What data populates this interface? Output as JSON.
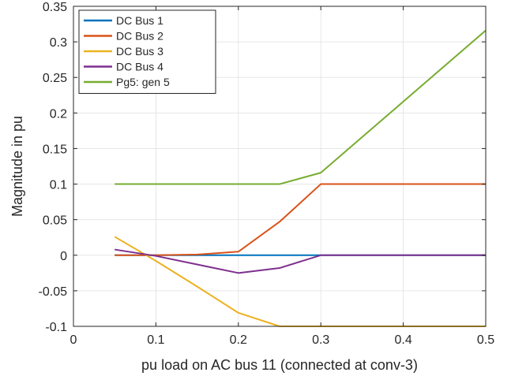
{
  "chart_data": {
    "type": "line",
    "title": "",
    "xlabel": "pu load on AC bus 11 (connected at conv-3)",
    "ylabel": "Magnitude in pu",
    "xlim": [
      0,
      0.5
    ],
    "ylim": [
      -0.1,
      0.35
    ],
    "xticks": [
      0,
      0.1,
      0.2,
      0.3,
      0.4,
      0.5
    ],
    "xtick_labels": [
      "0",
      "0.1",
      "0.2",
      "0.3",
      "0.4",
      "0.5"
    ],
    "yticks": [
      -0.1,
      -0.05,
      0,
      0.05,
      0.1,
      0.15,
      0.2,
      0.25,
      0.3,
      0.35
    ],
    "ytick_labels": [
      "-0.1",
      "-0.05",
      "0",
      "0.05",
      "0.1",
      "0.15",
      "0.2",
      "0.25",
      "0.3",
      "0.35"
    ],
    "grid": true,
    "legend_position": "top-left",
    "x": [
      0.05,
      0.1,
      0.15,
      0.2,
      0.25,
      0.3,
      0.35,
      0.4,
      0.45,
      0.5
    ],
    "series": [
      {
        "name": "DC Bus 1",
        "color": "#0072BD",
        "values": [
          0,
          0,
          0,
          0,
          0,
          0,
          0,
          0,
          0,
          0
        ]
      },
      {
        "name": "DC Bus 2",
        "color": "#D95319",
        "values": [
          0,
          0,
          0.001,
          0.005,
          0.047,
          0.1,
          0.1,
          0.1,
          0.1,
          0.1
        ]
      },
      {
        "name": "DC Bus 3",
        "color": "#EDB120",
        "values": [
          0.026,
          -0.008,
          -0.044,
          -0.081,
          -0.1,
          -0.1,
          -0.1,
          -0.1,
          -0.1,
          -0.1
        ]
      },
      {
        "name": "DC Bus 4",
        "color": "#7E2F8E",
        "values": [
          0.008,
          -0.001,
          -0.013,
          -0.025,
          -0.018,
          0,
          0,
          0,
          0,
          0
        ]
      },
      {
        "name": "Pg5: gen 5",
        "color": "#77AC30",
        "values": [
          0.1,
          0.1,
          0.1,
          0.1,
          0.1,
          0.116,
          0.166,
          0.216,
          0.266,
          0.316
        ]
      }
    ]
  }
}
